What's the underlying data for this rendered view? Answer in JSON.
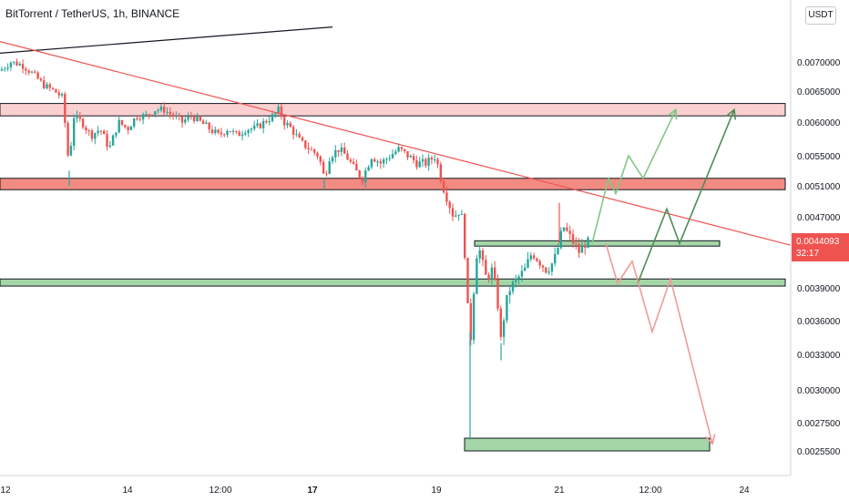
{
  "header": {
    "title": "BitTorrent / TetherUS, 1h, BINANCE"
  },
  "currency_button": "USDT",
  "last_price": {
    "value": "0.0044093",
    "countdown": "32:17"
  },
  "colors": {
    "up": "#26a69a",
    "down": "#ef5350",
    "zone_red": "#f28b82",
    "zone_pink": "#fbd0d0",
    "zone_green": "#a5d6a7",
    "trend_red": "#ef5350",
    "arrow_light_green": "#81c784",
    "arrow_dark_green": "#4e8c55",
    "arrow_red": "#ef9a9a"
  },
  "chart_data": {
    "type": "candlestick",
    "title": "BitTorrent / TetherUS, 1h, BINANCE",
    "y_scale": "linear",
    "ylim": [
      0.00245,
      0.0076
    ],
    "y_ticks": [
      "0.0070000",
      "0.0065000",
      "0.0060000",
      "0.0055000",
      "0.0051000",
      "0.0047000",
      "0.0039000",
      "0.0036000",
      "0.0033000",
      "0.0030000",
      "0.0027500",
      "0.0025500"
    ],
    "x_ticks": [
      {
        "label": "12",
        "bold": false
      },
      {
        "label": "14",
        "bold": false
      },
      {
        "label": "12:00",
        "bold": false
      },
      {
        "label": "17",
        "bold": true
      },
      {
        "label": "19",
        "bold": false
      },
      {
        "label": "21",
        "bold": false
      },
      {
        "label": "12:00",
        "bold": false
      },
      {
        "label": "24",
        "bold": false
      }
    ],
    "price_path": [
      [
        0,
        0.00685
      ],
      [
        12,
        0.007
      ],
      [
        24,
        0.00695
      ],
      [
        36,
        0.0068
      ],
      [
        48,
        0.0066
      ],
      [
        60,
        0.0065
      ],
      [
        68,
        0.0064
      ],
      [
        72,
        0.0059
      ],
      [
        76,
        0.0053
      ],
      [
        80,
        0.0061
      ],
      [
        90,
        0.006
      ],
      [
        100,
        0.0058
      ],
      [
        110,
        0.0059
      ],
      [
        120,
        0.0056
      ],
      [
        130,
        0.006
      ],
      [
        140,
        0.0059
      ],
      [
        150,
        0.0061
      ],
      [
        160,
        0.0061
      ],
      [
        170,
        0.0062
      ],
      [
        180,
        0.0062
      ],
      [
        190,
        0.0061
      ],
      [
        200,
        0.006
      ],
      [
        210,
        0.0061
      ],
      [
        220,
        0.006
      ],
      [
        230,
        0.0059
      ],
      [
        240,
        0.0058
      ],
      [
        250,
        0.0059
      ],
      [
        260,
        0.0058
      ],
      [
        270,
        0.0059
      ],
      [
        280,
        0.0059
      ],
      [
        290,
        0.006
      ],
      [
        300,
        0.0061
      ],
      [
        306,
        0.0062
      ],
      [
        312,
        0.006
      ],
      [
        320,
        0.0059
      ],
      [
        330,
        0.0057
      ],
      [
        340,
        0.0056
      ],
      [
        350,
        0.0055
      ],
      [
        356,
        0.0052
      ],
      [
        362,
        0.0055
      ],
      [
        372,
        0.0056
      ],
      [
        380,
        0.0055
      ],
      [
        390,
        0.0053
      ],
      [
        398,
        0.0052
      ],
      [
        408,
        0.0055
      ],
      [
        418,
        0.0054
      ],
      [
        428,
        0.0055
      ],
      [
        438,
        0.0056
      ],
      [
        448,
        0.0055
      ],
      [
        458,
        0.0054
      ],
      [
        468,
        0.0054
      ],
      [
        478,
        0.0055
      ],
      [
        486,
        0.0051
      ],
      [
        492,
        0.0049
      ],
      [
        498,
        0.0047
      ],
      [
        506,
        0.0048
      ],
      [
        511,
        0.0042
      ],
      [
        514,
        0.0036
      ],
      [
        518,
        0.0034
      ],
      [
        521,
        0.0041
      ],
      [
        525,
        0.0044
      ],
      [
        529,
        0.0042
      ],
      [
        534,
        0.004
      ],
      [
        540,
        0.0041
      ],
      [
        546,
        0.0038
      ],
      [
        550,
        0.0034
      ],
      [
        554,
        0.0037
      ],
      [
        560,
        0.0039
      ],
      [
        568,
        0.004
      ],
      [
        576,
        0.0041
      ],
      [
        584,
        0.0043
      ],
      [
        592,
        0.0042
      ],
      [
        600,
        0.0041
      ],
      [
        608,
        0.0042
      ],
      [
        614,
        0.0044
      ],
      [
        618,
        0.0046
      ],
      [
        624,
        0.0045
      ],
      [
        630,
        0.0044
      ],
      [
        636,
        0.0043
      ],
      [
        642,
        0.0044
      ],
      [
        648,
        0.00441
      ]
    ],
    "extreme_wicks": [
      {
        "x": 76,
        "low": 0.0051
      },
      {
        "x": 356,
        "low": 0.00505
      },
      {
        "x": 516,
        "low": 0.00263
      },
      {
        "x": 550,
        "low": 0.00325
      },
      {
        "x": 614,
        "high": 0.00488
      }
    ],
    "zones": [
      {
        "name": "zone-pink",
        "top": 0.0063,
        "bottom": 0.0061,
        "fill": "#fbd0d0"
      },
      {
        "name": "zone-red",
        "top": 0.0052,
        "bottom": 0.00505,
        "fill": "#f28b82"
      },
      {
        "name": "zone-green-wide",
        "top": 0.004,
        "bottom": 0.00392,
        "fill": "#a5d6a7"
      },
      {
        "name": "zone-green-small",
        "top": 0.00443,
        "bottom": 0.00437,
        "fill": "#a5d6a7"
      },
      {
        "name": "zone-green-target",
        "top": 0.00264,
        "bottom": 0.00255,
        "fill": "#a5d6a7"
      }
    ],
    "trendlines": [
      {
        "name": "black-trendline",
        "color": "#131722",
        "points": [
          [
            0,
            0.00715
          ],
          [
            365,
            0.0076
          ]
        ]
      },
      {
        "name": "red-trendline",
        "color": "#ef5350",
        "points": [
          [
            0,
            0.00735
          ],
          [
            868,
            0.00438
          ]
        ]
      }
    ],
    "projections": [
      {
        "name": "projection-light-green",
        "color": "#81c784",
        "points": [
          [
            650,
            0.0044
          ],
          [
            668,
            0.0052
          ],
          [
            676,
            0.005
          ],
          [
            690,
            0.0055
          ],
          [
            706,
            0.0052
          ],
          [
            742,
            0.0062
          ]
        ]
      },
      {
        "name": "projection-dark-green",
        "color": "#4e8c55",
        "points": [
          [
            700,
            0.00395
          ],
          [
            732,
            0.0048
          ],
          [
            746,
            0.0044
          ],
          [
            806,
            0.0062
          ]
        ]
      },
      {
        "name": "projection-red",
        "color": "#ef9a9a",
        "points": [
          [
            665,
            0.0044
          ],
          [
            678,
            0.00395
          ],
          [
            694,
            0.0042
          ],
          [
            716,
            0.0035
          ],
          [
            736,
            0.004
          ],
          [
            782,
            0.0026
          ]
        ]
      }
    ],
    "last_price": 0.0044093
  }
}
